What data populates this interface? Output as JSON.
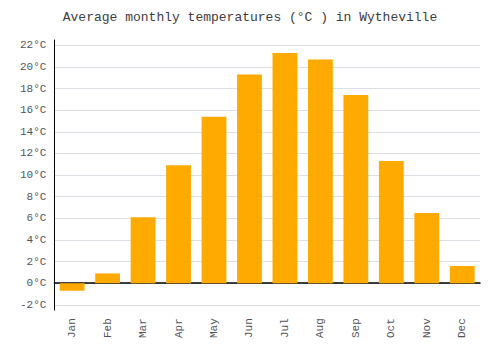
{
  "chart_data": {
    "type": "bar",
    "title": "Average monthly temperatures (°C ) in Wytheville",
    "categories": [
      "Jan",
      "Feb",
      "Mar",
      "Apr",
      "May",
      "Jun",
      "Jul",
      "Aug",
      "Sep",
      "Oct",
      "Nov",
      "Dec"
    ],
    "values": [
      -0.7,
      0.9,
      6.1,
      10.9,
      15.4,
      19.3,
      21.3,
      20.7,
      17.4,
      11.3,
      6.5,
      1.6
    ],
    "color": "#FFAA00",
    "ylim": [
      -2.5,
      22.5
    ],
    "yticks": [
      {
        "value": -2,
        "label": "-2°C"
      },
      {
        "value": 0,
        "label": "0°C"
      },
      {
        "value": 2,
        "label": "2°C"
      },
      {
        "value": 4,
        "label": "4°C"
      },
      {
        "value": 6,
        "label": "6°C"
      },
      {
        "value": 8,
        "label": "8°C"
      },
      {
        "value": 10,
        "label": "10°C"
      },
      {
        "value": 12,
        "label": "12°C"
      },
      {
        "value": 14,
        "label": "14°C"
      },
      {
        "value": 16,
        "label": "16°C"
      },
      {
        "value": 18,
        "label": "18°C"
      },
      {
        "value": 20,
        "label": "20°C"
      },
      {
        "value": 22,
        "label": "22°C"
      }
    ],
    "grid": true
  }
}
